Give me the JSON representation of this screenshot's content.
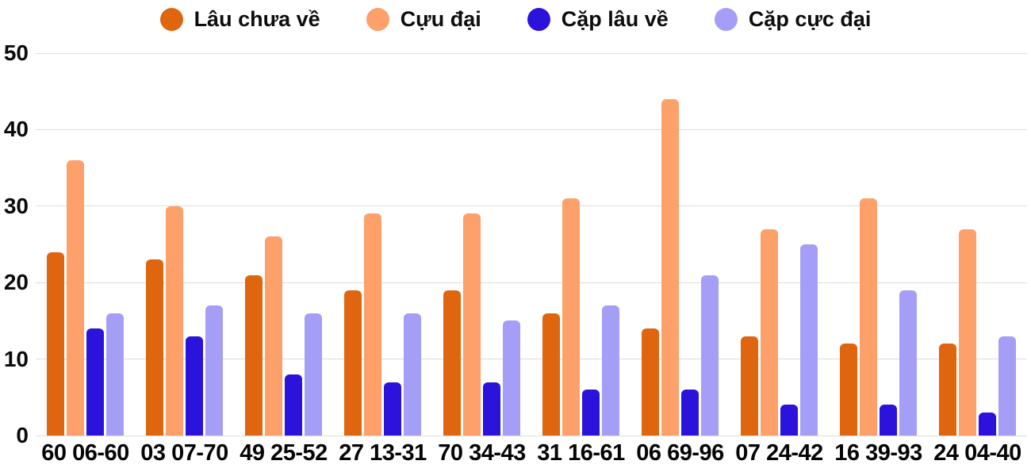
{
  "chart_data": {
    "type": "bar",
    "title": "",
    "categories": [
      "60 06-60",
      "03 07-70",
      "49 25-52",
      "27 13-31",
      "70 34-43",
      "31 16-61",
      "06 69-96",
      "07 24-42",
      "16 39-93",
      "24 04-40"
    ],
    "series": [
      {
        "name": "Lâu chưa về",
        "color": "#e0650f",
        "values": [
          24,
          23,
          21,
          19,
          19,
          16,
          14,
          13,
          12,
          12
        ]
      },
      {
        "name": "Cựu đại",
        "color": "#fda069",
        "values": [
          36,
          30,
          26,
          29,
          29,
          31,
          44,
          27,
          31,
          27
        ]
      },
      {
        "name": "Cặp lâu về",
        "color": "#2b13dc",
        "values": [
          14,
          13,
          8,
          7,
          7,
          6,
          6,
          4,
          4,
          3
        ]
      },
      {
        "name": "Cặp cực đại",
        "color": "#a49ef7",
        "values": [
          16,
          17,
          16,
          16,
          15,
          17,
          21,
          25,
          19,
          13
        ]
      }
    ],
    "xlabel": "",
    "ylabel": "",
    "ylim": [
      0,
      50
    ],
    "yticks": [
      0,
      10,
      20,
      30,
      40,
      50
    ],
    "grid": true,
    "legend_position": "top",
    "colors": {
      "grid_line": "#dcdcdc",
      "text": "#0a0a0a",
      "background": "#ffffff"
    }
  }
}
